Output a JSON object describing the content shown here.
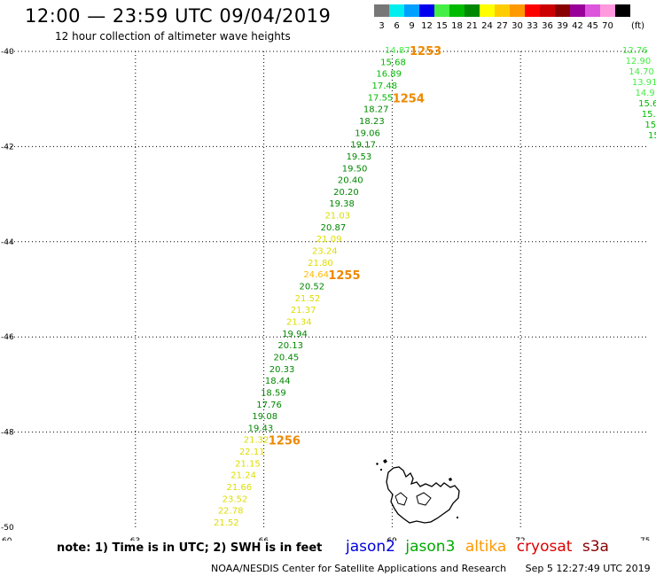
{
  "title": "12:00 — 23:59 UTC 09/04/2019",
  "subtitle": "12 hour collection of altimeter wave heights",
  "legend": {
    "unit": "(ft)",
    "items": [
      {
        "label": "3",
        "color": "#777777"
      },
      {
        "label": "6",
        "color": "#00eeee"
      },
      {
        "label": "9",
        "color": "#00a0ff"
      },
      {
        "label": "12",
        "color": "#0000ee"
      },
      {
        "label": "15",
        "color": "#44ee44"
      },
      {
        "label": "18",
        "color": "#00bb00"
      },
      {
        "label": "21",
        "color": "#008800"
      },
      {
        "label": "24",
        "color": "#ffff00"
      },
      {
        "label": "27",
        "color": "#ffcc00"
      },
      {
        "label": "30",
        "color": "#ff9900"
      },
      {
        "label": "33",
        "color": "#ff0000"
      },
      {
        "label": "36",
        "color": "#cc0000"
      },
      {
        "label": "39",
        "color": "#880000"
      },
      {
        "label": "42",
        "color": "#990099"
      },
      {
        "label": "45",
        "color": "#dd55dd"
      },
      {
        "label": "70",
        "color": "#ff99dd"
      },
      {
        "label": "",
        "color": "#000000"
      }
    ]
  },
  "axes": {
    "lon_ticks": [
      "60",
      "63",
      "66",
      "69",
      "72",
      "75"
    ],
    "lat_ticks": [
      "-40",
      "-42",
      "-44",
      "-46",
      "-48",
      "-50"
    ]
  },
  "track_main": [
    {
      "v": "14.87",
      "c": "#44ee44"
    },
    {
      "v": "15.68",
      "c": "#00bb00"
    },
    {
      "v": "16.89",
      "c": "#00bb00"
    },
    {
      "v": "17.48",
      "c": "#00bb00"
    },
    {
      "v": "17.55",
      "c": "#00bb00"
    },
    {
      "v": "18.27",
      "c": "#008800"
    },
    {
      "v": "18.23",
      "c": "#008800"
    },
    {
      "v": "19.06",
      "c": "#008800"
    },
    {
      "v": "19.17",
      "c": "#008800"
    },
    {
      "v": "19.53",
      "c": "#008800"
    },
    {
      "v": "19.50",
      "c": "#008800"
    },
    {
      "v": "20.40",
      "c": "#008800"
    },
    {
      "v": "20.20",
      "c": "#008800"
    },
    {
      "v": "19.38",
      "c": "#008800"
    },
    {
      "v": "21.03",
      "c": "#dddd00"
    },
    {
      "v": "20.87",
      "c": "#008800"
    },
    {
      "v": "21.09",
      "c": "#dddd00"
    },
    {
      "v": "23.24",
      "c": "#dddd00"
    },
    {
      "v": "21.80",
      "c": "#dddd00"
    },
    {
      "v": "24.64",
      "c": "#ffbb00"
    },
    {
      "v": "20.52",
      "c": "#008800"
    },
    {
      "v": "21.52",
      "c": "#dddd00"
    },
    {
      "v": "21.37",
      "c": "#dddd00"
    },
    {
      "v": "21.34",
      "c": "#dddd00"
    },
    {
      "v": "19.94",
      "c": "#008800"
    },
    {
      "v": "20.13",
      "c": "#008800"
    },
    {
      "v": "20.45",
      "c": "#008800"
    },
    {
      "v": "20.33",
      "c": "#008800"
    },
    {
      "v": "18.44",
      "c": "#008800"
    },
    {
      "v": "18.59",
      "c": "#008800"
    },
    {
      "v": "17.76",
      "c": "#008800"
    },
    {
      "v": "19.08",
      "c": "#008800"
    },
    {
      "v": "19.43",
      "c": "#008800"
    },
    {
      "v": "21.32",
      "c": "#dddd00"
    },
    {
      "v": "22.11",
      "c": "#dddd00"
    },
    {
      "v": "21.15",
      "c": "#dddd00"
    },
    {
      "v": "21.24",
      "c": "#dddd00"
    },
    {
      "v": "21.66",
      "c": "#dddd00"
    },
    {
      "v": "23.52",
      "c": "#dddd00"
    },
    {
      "v": "22.78",
      "c": "#dddd00"
    },
    {
      "v": "21.52",
      "c": "#dddd00"
    }
  ],
  "track_east": [
    {
      "v": "12.76",
      "c": "#44ee44"
    },
    {
      "v": "12.90",
      "c": "#44ee44"
    },
    {
      "v": "14.70",
      "c": "#44ee44"
    },
    {
      "v": "13.91",
      "c": "#44ee44"
    },
    {
      "v": "14.9",
      "c": "#44ee44"
    },
    {
      "v": "15.6",
      "c": "#00bb00"
    },
    {
      "v": "15.",
      "c": "#00bb00"
    },
    {
      "v": "15",
      "c": "#00bb00"
    },
    {
      "v": "15",
      "c": "#00bb00"
    }
  ],
  "time_marks": [
    {
      "label": "1253",
      "c": "#ee8800"
    },
    {
      "label": "1254",
      "c": "#ee8800"
    },
    {
      "label": "1255",
      "c": "#ee8800"
    },
    {
      "label": "1256",
      "c": "#ee8800"
    }
  ],
  "note": "note: 1) Time is in UTC; 2) SWH is in feet",
  "satellites": [
    {
      "name": "jason2",
      "color": "#0000dd"
    },
    {
      "name": "jason3",
      "color": "#00aa00"
    },
    {
      "name": "altika",
      "color": "#ff9900"
    },
    {
      "name": "cryosat",
      "color": "#dd0000"
    },
    {
      "name": "s3a",
      "color": "#880000"
    }
  ],
  "footer": {
    "credit": "NOAA/NESDIS Center for Satellite Applications and Research",
    "timestamp": "Sep  5 12:27:49 UTC 2019"
  }
}
